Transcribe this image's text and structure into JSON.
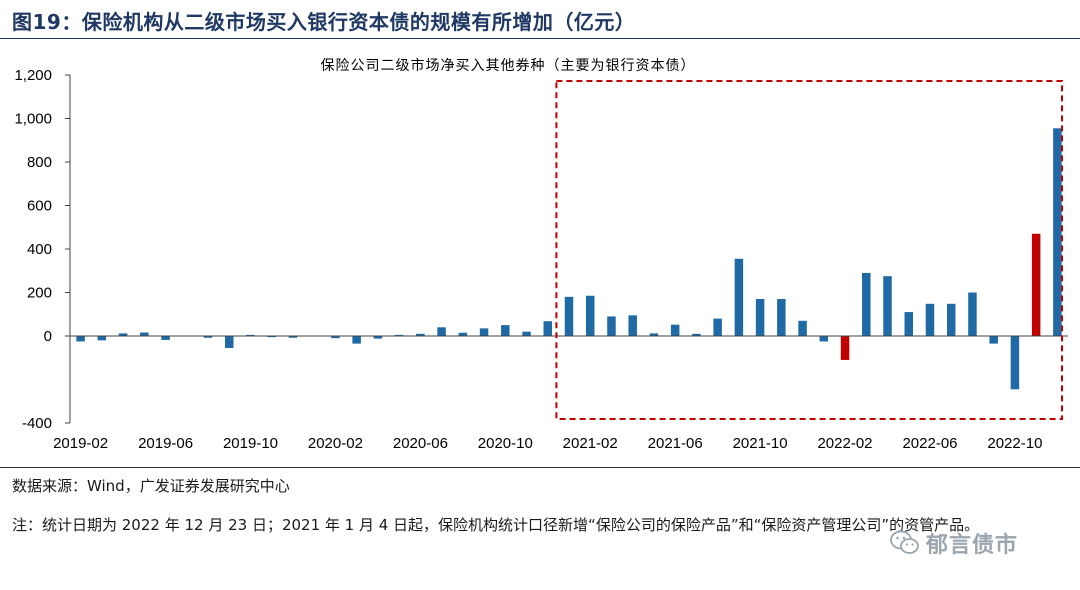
{
  "header": {
    "title": "图19：保险机构从二级市场买入银行资本债的规模有所增加（亿元）"
  },
  "chart_data": {
    "type": "bar",
    "title": "保险公司二级市场净买入其他券种（主要为银行资本债）",
    "xlabel": "",
    "ylabel": "",
    "ylim": [
      -400,
      1200
    ],
    "yticks": [
      "-400",
      "0",
      "200",
      "400",
      "600",
      "800",
      "1,000",
      "1,200"
    ],
    "ytick_values": [
      -400,
      0,
      200,
      400,
      600,
      800,
      1000,
      1200
    ],
    "xtick_labels": [
      "2019-02",
      "2019-06",
      "2019-10",
      "2020-02",
      "2020-06",
      "2020-10",
      "2021-02",
      "2021-06",
      "2021-10",
      "2022-02",
      "2022-06",
      "2022-10"
    ],
    "xtick_indices": [
      0,
      4,
      8,
      12,
      16,
      20,
      24,
      28,
      32,
      36,
      40,
      44
    ],
    "categories": [
      "2019-02",
      "2019-03",
      "2019-04",
      "2019-05",
      "2019-06",
      "2019-07",
      "2019-08",
      "2019-09",
      "2019-10",
      "2019-11",
      "2019-12",
      "2020-01",
      "2020-02",
      "2020-03",
      "2020-04",
      "2020-05",
      "2020-06",
      "2020-07",
      "2020-08",
      "2020-09",
      "2020-10",
      "2020-11",
      "2020-12",
      "2021-01",
      "2021-02",
      "2021-03",
      "2021-04",
      "2021-05",
      "2021-06",
      "2021-07",
      "2021-08",
      "2021-09",
      "2021-10",
      "2021-11",
      "2021-12",
      "2022-01",
      "2022-02",
      "2022-03",
      "2022-04",
      "2022-05",
      "2022-06",
      "2022-07",
      "2022-08",
      "2022-09",
      "2022-10",
      "2022-11",
      "2022-12"
    ],
    "values": [
      -25,
      -20,
      12,
      16,
      -18,
      0,
      -8,
      -55,
      5,
      -5,
      -8,
      0,
      -10,
      -35,
      -12,
      5,
      10,
      40,
      15,
      35,
      50,
      20,
      68,
      180,
      185,
      90,
      95,
      12,
      52,
      10,
      80,
      355,
      170,
      170,
      70,
      -25,
      -110,
      290,
      275,
      110,
      148,
      148,
      200,
      -35,
      -245,
      470,
      955
    ],
    "colors": {
      "positive": "#1f6aa5",
      "negative": "#c00000",
      "highlight_box": "#c00000",
      "axis": "#404040"
    },
    "highlight_range": [
      "2021-01",
      "2022-12"
    ],
    "grid": false,
    "legend": "none"
  },
  "footer": {
    "source": "数据来源：Wind，广发证券发展研究中心",
    "note": "注：统计日期为 2022 年 12 月 23 日；2021 年 1 月 4 日起，保险机构统计口径新增“保险公司的保险产品”和“保险资产管理公司”的资管产品。"
  },
  "watermark": {
    "text": "郁言债市",
    "icon": "wechat-icon"
  }
}
